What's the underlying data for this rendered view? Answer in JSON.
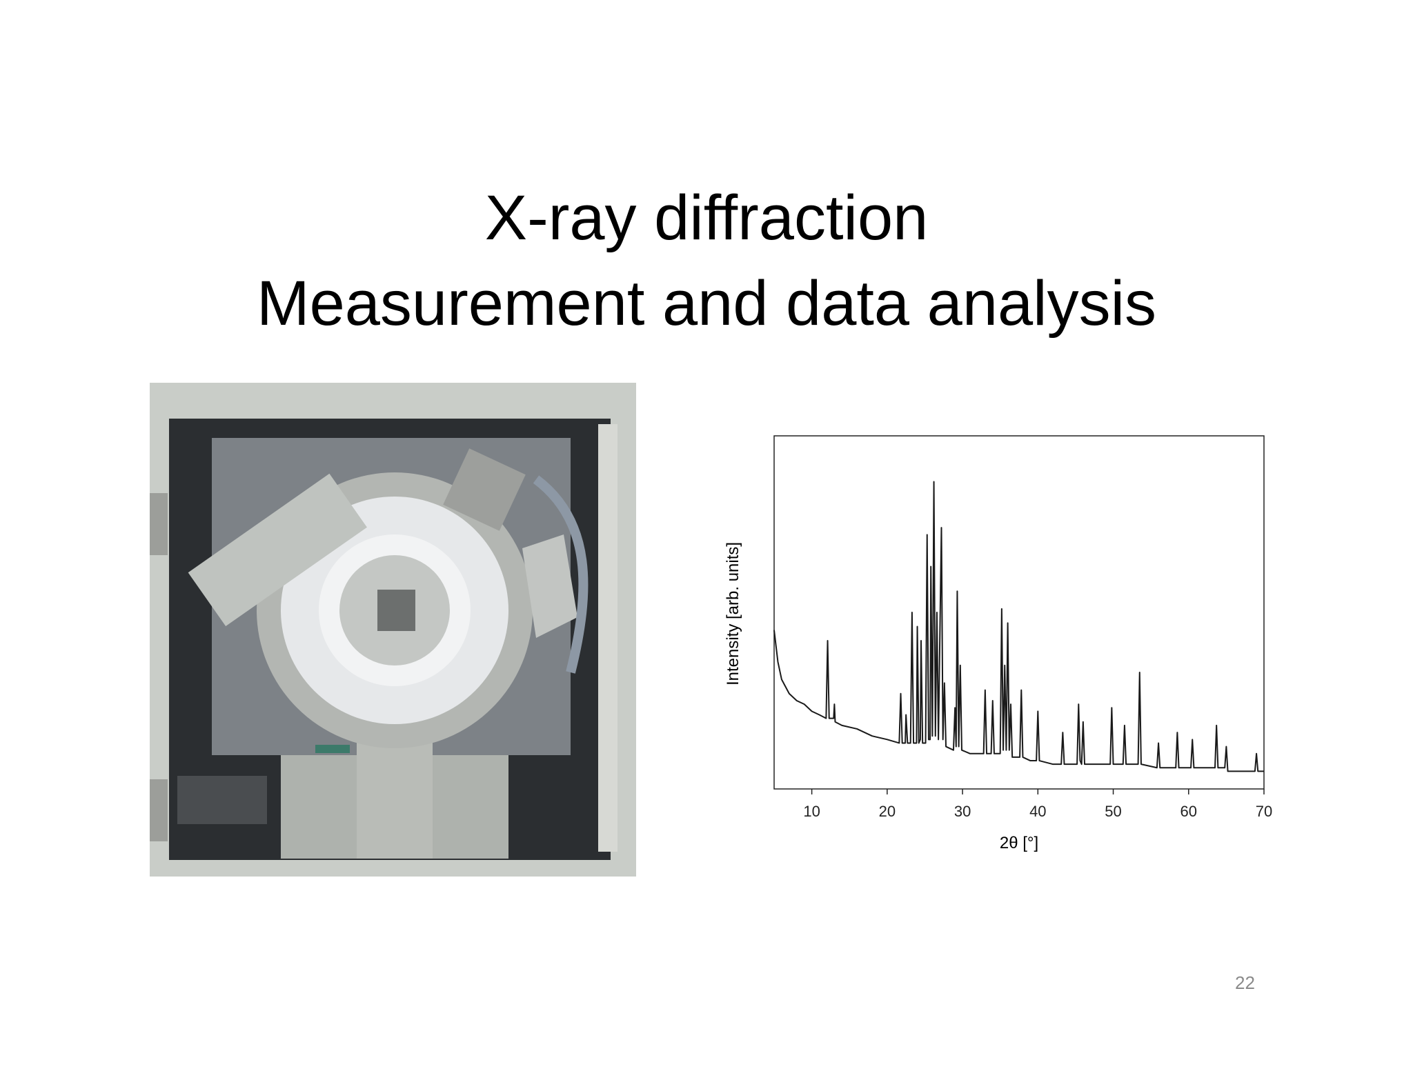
{
  "title_lines": [
    "X-ray diffraction",
    "Measurement and data analysis"
  ],
  "page_number": "22",
  "chart_data": {
    "type": "line",
    "x_label": "2θ [°]",
    "y_label": "Intensity [arb. units]",
    "xlim": [
      5,
      70
    ],
    "xticks": [
      10,
      20,
      30,
      40,
      50,
      60,
      70
    ],
    "ylim": [
      0,
      100
    ],
    "series": [
      {
        "color": "#1a1a1a",
        "x": [
          5,
          5.5,
          6,
          7,
          8,
          9,
          10,
          11,
          11.9,
          12.1,
          12.3,
          12.9,
          13.0,
          13.1,
          14,
          16,
          18,
          20,
          21.6,
          21.8,
          22.0,
          22.4,
          22.5,
          22.7,
          23.1,
          23.3,
          23.5,
          23.9,
          24.0,
          24.2,
          24.4,
          24.5,
          24.7,
          25.1,
          25.3,
          25.5,
          25.7,
          25.8,
          26.0,
          26.2,
          26.4,
          26.6,
          26.8,
          27.2,
          27.4,
          27.6,
          27.8,
          28.8,
          29.0,
          29.15,
          29.3,
          29.5,
          29.7,
          29.9,
          31,
          32.8,
          33.0,
          33.2,
          33.8,
          34.0,
          34.2,
          35.0,
          35.2,
          35.4,
          35.6,
          35.8,
          36.0,
          36.2,
          36.4,
          36.6,
          37.6,
          37.8,
          38.0,
          39,
          39.8,
          40.0,
          40.2,
          42,
          43.1,
          43.3,
          43.5,
          45.2,
          45.4,
          45.6,
          45.8,
          46.0,
          46.2,
          48,
          49.6,
          49.8,
          50.0,
          51.3,
          51.5,
          51.7,
          53.3,
          53.5,
          53.7,
          55.8,
          56.0,
          56.2,
          58.3,
          58.5,
          58.7,
          60.3,
          60.5,
          60.7,
          63.5,
          63.7,
          63.9,
          64.8,
          65.0,
          65.2,
          68.8,
          69.0,
          69.2,
          70
        ],
        "values": [
          45,
          36,
          31,
          27,
          25,
          24,
          22,
          21,
          20,
          42,
          20,
          20,
          24,
          19,
          18,
          17,
          15,
          14,
          13,
          27,
          13,
          13,
          21,
          13,
          13,
          50,
          13,
          13,
          46,
          13,
          14,
          42,
          13,
          13,
          72,
          14,
          14,
          63,
          15,
          87,
          15,
          50,
          14,
          74,
          14,
          30,
          12,
          11,
          23,
          12,
          56,
          12,
          35,
          11,
          10,
          10,
          28,
          10,
          10,
          25,
          10,
          10,
          51,
          11,
          35,
          11,
          47,
          11,
          24,
          9,
          9,
          28,
          9,
          8,
          8,
          22,
          8,
          7,
          7,
          16,
          7,
          7,
          24,
          8,
          7,
          19,
          7,
          7,
          7,
          23,
          7,
          7,
          18,
          7,
          7,
          33,
          7,
          6,
          13,
          6,
          6,
          16,
          6,
          6,
          14,
          6,
          6,
          18,
          6,
          6,
          12,
          5,
          5,
          10,
          5,
          5
        ]
      }
    ]
  }
}
